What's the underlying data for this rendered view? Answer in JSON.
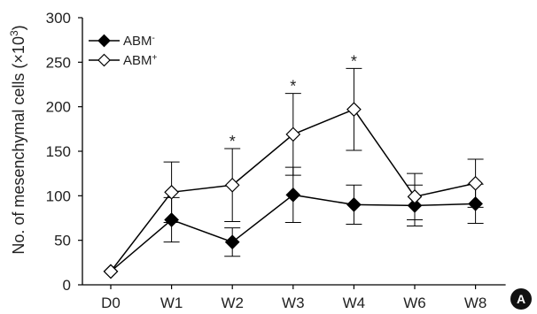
{
  "chart_data": {
    "type": "line",
    "panel_label": "A",
    "ylabel_main": "No. of mesenchymal cells (",
    "ylabel_unit": "×10",
    "ylabel_exp": "3",
    "ylabel_close": ")",
    "ylim": [
      0,
      300
    ],
    "yticks": [
      0,
      50,
      100,
      150,
      200,
      250,
      300
    ],
    "categories": [
      "D0",
      "W1",
      "W2",
      "W3",
      "W4",
      "W6",
      "W8"
    ],
    "series": [
      {
        "name": "ABM",
        "name_sup": "-",
        "marker": "filled-diamond",
        "color": "#000000",
        "values": [
          15,
          73,
          48,
          101,
          90,
          89,
          91
        ],
        "error": [
          0,
          25,
          16,
          31,
          22,
          23,
          22
        ]
      },
      {
        "name": "ABM",
        "name_sup": "+",
        "marker": "open-diamond",
        "color": "#000000",
        "values": [
          15,
          104,
          112,
          169,
          197,
          99,
          114
        ],
        "error": [
          0,
          34,
          41,
          46,
          46,
          26,
          27
        ]
      }
    ],
    "significance": [
      {
        "category": "W2",
        "mark": "*"
      },
      {
        "category": "W3",
        "mark": "*"
      },
      {
        "category": "W4",
        "mark": "*"
      }
    ],
    "legend_position": "top-left",
    "grid": false
  }
}
